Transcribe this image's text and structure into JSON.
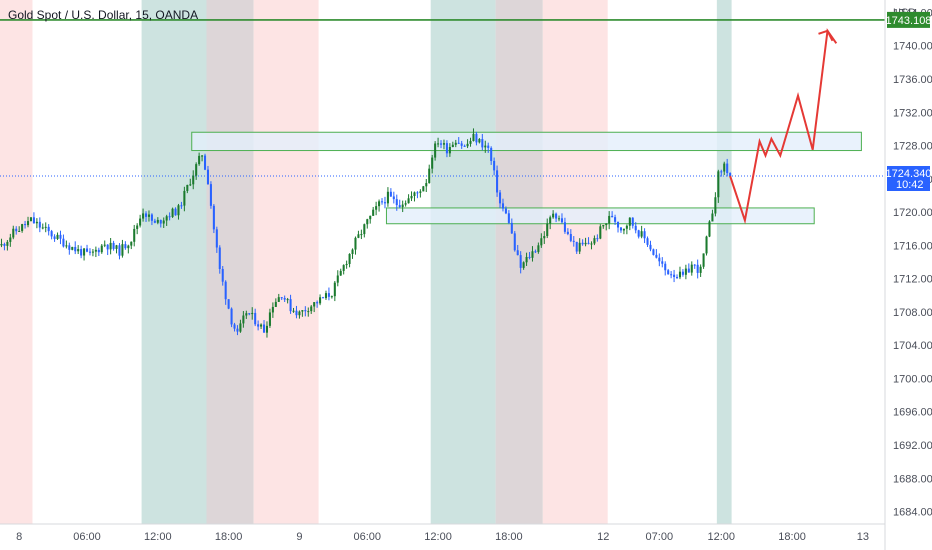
{
  "chart_data": {
    "type": "candlestick",
    "title": "Gold Spot / U.S. Dollar, 15, OANDA",
    "currency": "USD",
    "ylim": [
      1682.5,
      1745.5
    ],
    "y_ticks": [
      "1744.000",
      "1740.000",
      "1736.000",
      "1732.000",
      "1728.000",
      "1724.000",
      "1720.000",
      "1716.000",
      "1712.000",
      "1708.000",
      "1704.000",
      "1700.000",
      "1696.000",
      "1692.000",
      "1688.000",
      "1684.000"
    ],
    "x_ticks": [
      {
        "label": "8",
        "bar": 6
      },
      {
        "label": "06:00",
        "bar": 29
      },
      {
        "label": "12:00",
        "bar": 53
      },
      {
        "label": "18:00",
        "bar": 77
      },
      {
        "label": "9",
        "bar": 101
      },
      {
        "label": "06:00",
        "bar": 124
      },
      {
        "label": "12:00",
        "bar": 148
      },
      {
        "label": "18:00",
        "bar": 172
      },
      {
        "label": "12",
        "bar": 204
      },
      {
        "label": "07:00",
        "bar": 223
      },
      {
        "label": "12:00",
        "bar": 244
      },
      {
        "label": "18:00",
        "bar": 268
      },
      {
        "label": "13",
        "bar": 292
      }
    ],
    "bar_count": 300,
    "current_price": {
      "value": "1724.340",
      "countdown": "10:42",
      "price": 1724.34
    },
    "horizontal_line": {
      "value": "1743.108",
      "price": 1743.108
    },
    "sessions": [
      {
        "type": "red",
        "from": 0,
        "to": 11
      },
      {
        "type": "teal",
        "from": 48,
        "to": 70
      },
      {
        "type": "gray",
        "from": 70,
        "to": 86
      },
      {
        "type": "red",
        "from": 86,
        "to": 108
      },
      {
        "type": "teal",
        "from": 146,
        "to": 168
      },
      {
        "type": "gray",
        "from": 168,
        "to": 184
      },
      {
        "type": "red",
        "from": 184,
        "to": 206
      },
      {
        "type": "teal",
        "from": 243,
        "to": 248
      }
    ],
    "zones": [
      {
        "from_bar": 65,
        "to_bar": 292,
        "top": 1729.6,
        "bottom": 1727.4
      },
      {
        "from_bar": 131,
        "to_bar": 276,
        "top": 1720.5,
        "bottom": 1718.6
      }
    ],
    "price_path": [
      [
        0,
        1716.0
      ],
      [
        4,
        1717.5
      ],
      [
        10,
        1719.0
      ],
      [
        15,
        1717.8
      ],
      [
        20,
        1716.6
      ],
      [
        25,
        1715.5
      ],
      [
        30,
        1714.8
      ],
      [
        35,
        1716.2
      ],
      [
        40,
        1715.3
      ],
      [
        44,
        1716.8
      ],
      [
        48,
        1720.2
      ],
      [
        52,
        1718.5
      ],
      [
        56,
        1719.6
      ],
      [
        60,
        1720.3
      ],
      [
        63,
        1723.0
      ],
      [
        66,
        1725.5
      ],
      [
        68,
        1727.0
      ],
      [
        70,
        1723.8
      ],
      [
        72,
        1718.0
      ],
      [
        74,
        1713.0
      ],
      [
        76,
        1710.0
      ],
      [
        78,
        1707.0
      ],
      [
        80,
        1705.2
      ],
      [
        83,
        1708.0
      ],
      [
        86,
        1707.0
      ],
      [
        89,
        1705.8
      ],
      [
        92,
        1709.0
      ],
      [
        95,
        1710.2
      ],
      [
        98,
        1708.5
      ],
      [
        101,
        1707.8
      ],
      [
        104,
        1708.6
      ],
      [
        108,
        1709.4
      ],
      [
        112,
        1710.3
      ],
      [
        116,
        1713.5
      ],
      [
        120,
        1716.4
      ],
      [
        124,
        1718.8
      ],
      [
        128,
        1720.9
      ],
      [
        131,
        1721.9
      ],
      [
        134,
        1721.0
      ],
      [
        137,
        1721.4
      ],
      [
        141,
        1722.3
      ],
      [
        144,
        1723.8
      ],
      [
        146,
        1727.0
      ],
      [
        148,
        1728.6
      ],
      [
        151,
        1727.6
      ],
      [
        154,
        1728.8
      ],
      [
        157,
        1727.8
      ],
      [
        160,
        1729.0
      ],
      [
        163,
        1728.2
      ],
      [
        165,
        1727.6
      ],
      [
        167,
        1724.5
      ],
      [
        169,
        1721.0
      ],
      [
        172,
        1719.0
      ],
      [
        174,
        1715.5
      ],
      [
        176,
        1713.3
      ],
      [
        178,
        1714.3
      ],
      [
        181,
        1715.6
      ],
      [
        184,
        1717.4
      ],
      [
        187,
        1720.0
      ],
      [
        189,
        1719.4
      ],
      [
        192,
        1717.1
      ],
      [
        195,
        1715.7
      ],
      [
        198,
        1716.1
      ],
      [
        201,
        1716.6
      ],
      [
        204,
        1718.4
      ],
      [
        207,
        1719.6
      ],
      [
        210,
        1718.0
      ],
      [
        213,
        1719.0
      ],
      [
        216,
        1717.6
      ],
      [
        219,
        1716.4
      ],
      [
        222,
        1714.4
      ],
      [
        225,
        1713.0
      ],
      [
        228,
        1712.6
      ],
      [
        231,
        1712.2
      ],
      [
        234,
        1713.6
      ],
      [
        237,
        1713.0
      ],
      [
        239,
        1716.6
      ],
      [
        241,
        1720.2
      ],
      [
        243,
        1724.4
      ],
      [
        245,
        1725.7
      ],
      [
        247,
        1724.34
      ]
    ],
    "projection": [
      [
        247,
        1724.34
      ],
      [
        252,
        1719.0
      ],
      [
        257,
        1728.5
      ],
      [
        259,
        1726.8
      ],
      [
        261,
        1728.8
      ],
      [
        264,
        1726.8
      ],
      [
        270,
        1734.0
      ],
      [
        275,
        1727.5
      ],
      [
        280,
        1741.8
      ],
      [
        283,
        1740.3
      ]
    ],
    "colors": {
      "up": "#26a69a",
      "up_stroke": "#1b7a2e",
      "down": "#2962ff",
      "projection": "#e53935",
      "hline": "#2e8b2e",
      "zone_fill": "#e3effb",
      "zone_stroke": "#4caf50",
      "current_tag": "#2962ff",
      "teal_session": "#cde3e0",
      "gray_session": "#ddd6d8",
      "red_session": "#fde4e4"
    }
  }
}
